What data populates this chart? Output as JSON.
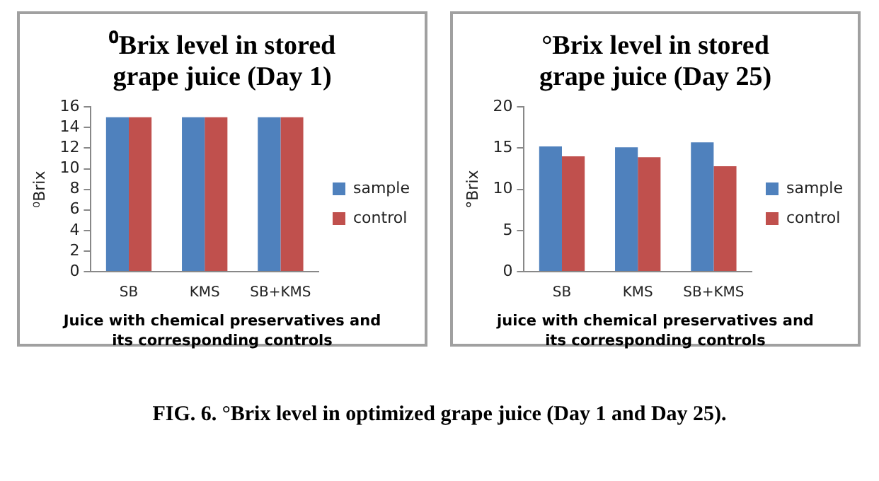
{
  "chart_data": [
    {
      "type": "bar",
      "title": "⁰Brix level in stored grape juice (Day 1)",
      "xlabel": "Juice with chemical preservatives and its corresponding controls",
      "ylabel": "⁰Brix",
      "categories": [
        "SB",
        "KMS",
        "SB+KMS"
      ],
      "series": [
        {
          "name": "sample",
          "color": "#4f81bd",
          "values": [
            15,
            15,
            15
          ]
        },
        {
          "name": "control",
          "color": "#c0504d",
          "values": [
            15,
            15,
            15
          ]
        }
      ],
      "ylim": [
        0,
        16
      ],
      "yticks": [
        0,
        2,
        4,
        6,
        8,
        10,
        12,
        14,
        16
      ],
      "grid": false,
      "legend": "right"
    },
    {
      "type": "bar",
      "title": "°Brix level in stored grape juice (Day 25)",
      "xlabel": "juice with chemical preservatives and its corresponding controls",
      "ylabel": "°Brix",
      "categories": [
        "SB",
        "KMS",
        "SB+KMS"
      ],
      "series": [
        {
          "name": "sample",
          "color": "#4f81bd",
          "values": [
            15.2,
            15.1,
            15.7
          ]
        },
        {
          "name": "control",
          "color": "#c0504d",
          "values": [
            14.0,
            13.9,
            12.8
          ]
        }
      ],
      "ylim": [
        0,
        20
      ],
      "yticks": [
        0,
        5,
        10,
        15,
        20
      ],
      "grid": false,
      "legend": "right",
      "annotations": [
        "FIG. 6. °Brix level in optimized grape juice (Day 1 and Day 25)."
      ]
    }
  ]
}
